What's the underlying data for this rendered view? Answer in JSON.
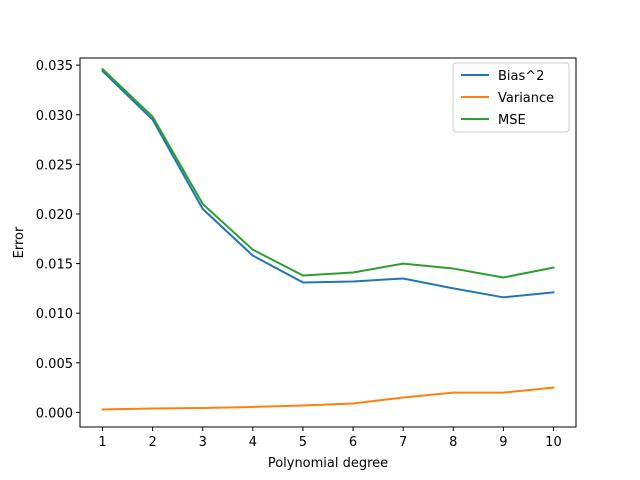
{
  "chart_data": {
    "type": "line",
    "title": "",
    "xlabel": "Polynomial degree",
    "ylabel": "Error",
    "x": [
      1,
      2,
      3,
      4,
      5,
      6,
      7,
      8,
      9,
      10
    ],
    "xlim": [
      0.55,
      10.45
    ],
    "ylim": [
      -0.00147,
      0.03572
    ],
    "xticks": [
      1,
      2,
      3,
      4,
      5,
      6,
      7,
      8,
      9,
      10
    ],
    "yticks": [
      0.0,
      0.005,
      0.01,
      0.015,
      0.02,
      0.025,
      0.03,
      0.035
    ],
    "ytick_labels": [
      "0.000",
      "0.005",
      "0.010",
      "0.015",
      "0.020",
      "0.025",
      "0.030",
      "0.035"
    ],
    "grid": false,
    "legend_position": "top-right",
    "series": [
      {
        "name": "Bias^2",
        "color": "#1f77b4",
        "values": [
          0.0344,
          0.0295,
          0.0205,
          0.0158,
          0.0131,
          0.0132,
          0.0135,
          0.0125,
          0.0116,
          0.0121
        ]
      },
      {
        "name": "Variance",
        "color": "#ff7f0e",
        "values": [
          0.0003,
          0.0004,
          0.00045,
          0.00055,
          0.0007,
          0.0009,
          0.0015,
          0.002,
          0.002,
          0.0025
        ]
      },
      {
        "name": "MSE",
        "color": "#2ca02c",
        "values": [
          0.0346,
          0.0298,
          0.021,
          0.0164,
          0.0138,
          0.0141,
          0.015,
          0.0145,
          0.0136,
          0.0146
        ]
      }
    ]
  }
}
